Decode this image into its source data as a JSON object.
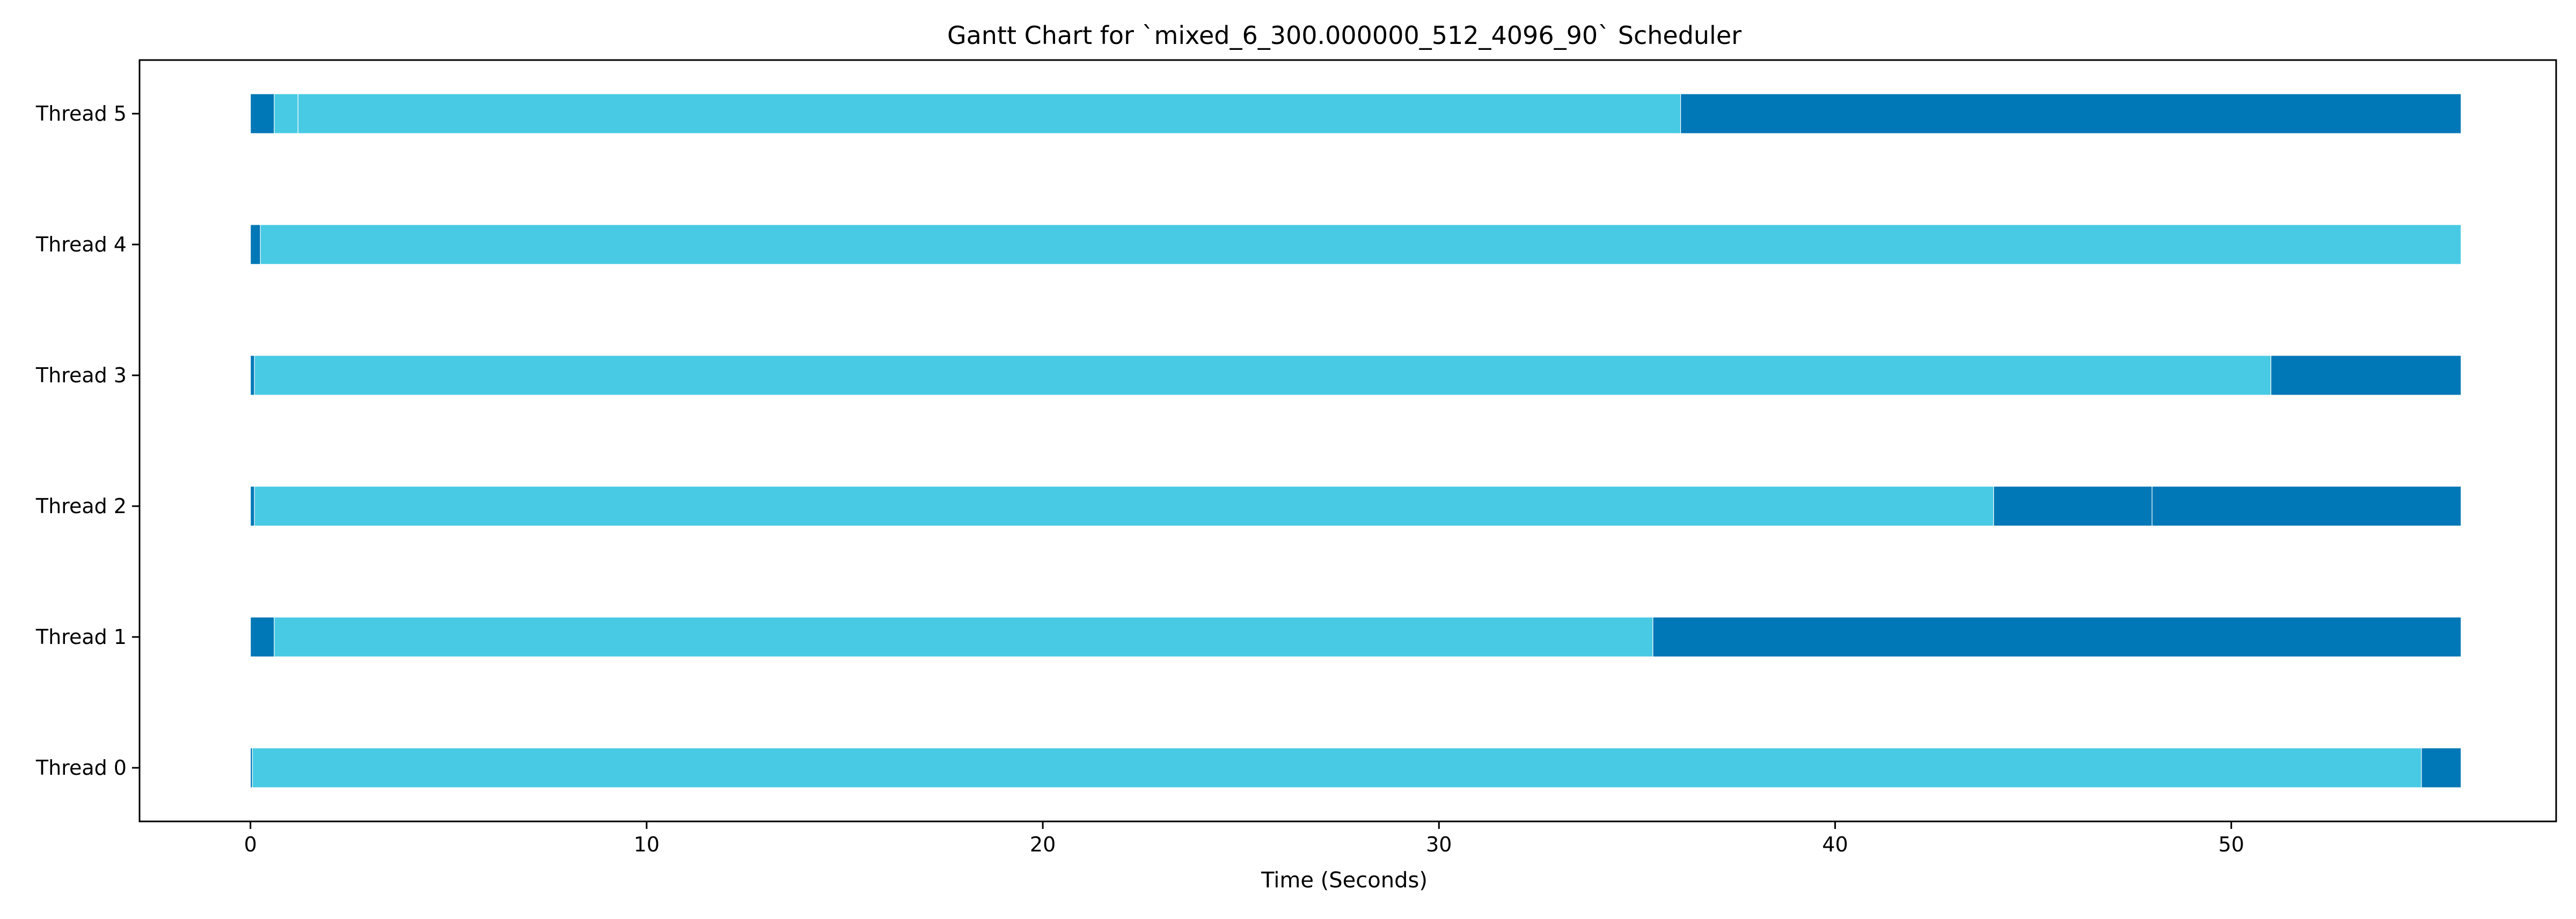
{
  "chart_data": {
    "type": "gantt",
    "title": "Gantt Chart for `mixed_6_300.000000_512_4096_90` Scheduler",
    "xlabel": "Time (Seconds)",
    "ylabel": "",
    "xlim": [
      -2.8,
      58.2
    ],
    "xticks": [
      0,
      10,
      20,
      30,
      40,
      50
    ],
    "grid": false,
    "legend": "none",
    "colors": {
      "dark": "#0077b6",
      "light": "#48cae4",
      "separator": "#ffffff"
    },
    "threads": [
      {
        "name": "Thread 0",
        "segments": [
          {
            "start": 0.0,
            "end": 0.05,
            "state": "dark"
          },
          {
            "start": 0.05,
            "end": 54.8,
            "state": "light"
          },
          {
            "start": 54.8,
            "end": 55.8,
            "state": "dark"
          }
        ]
      },
      {
        "name": "Thread 1",
        "segments": [
          {
            "start": 0.0,
            "end": 0.6,
            "state": "dark"
          },
          {
            "start": 0.6,
            "end": 35.4,
            "state": "light"
          },
          {
            "start": 35.4,
            "end": 55.8,
            "state": "dark"
          }
        ]
      },
      {
        "name": "Thread 2",
        "segments": [
          {
            "start": 0.0,
            "end": 0.1,
            "state": "dark"
          },
          {
            "start": 0.1,
            "end": 44.0,
            "state": "light"
          },
          {
            "start": 44.0,
            "end": 48.0,
            "state": "dark"
          },
          {
            "start": 48.0,
            "end": 55.8,
            "state": "dark"
          }
        ]
      },
      {
        "name": "Thread 3",
        "segments": [
          {
            "start": 0.0,
            "end": 0.1,
            "state": "dark"
          },
          {
            "start": 0.1,
            "end": 51.0,
            "state": "light"
          },
          {
            "start": 51.0,
            "end": 55.8,
            "state": "dark"
          }
        ]
      },
      {
        "name": "Thread 4",
        "segments": [
          {
            "start": 0.0,
            "end": 0.25,
            "state": "dark"
          },
          {
            "start": 0.25,
            "end": 55.8,
            "state": "light"
          }
        ]
      },
      {
        "name": "Thread 5",
        "segments": [
          {
            "start": 0.0,
            "end": 0.6,
            "state": "dark"
          },
          {
            "start": 0.6,
            "end": 1.2,
            "state": "light"
          },
          {
            "start": 1.2,
            "end": 36.1,
            "state": "light"
          },
          {
            "start": 36.1,
            "end": 55.8,
            "state": "dark"
          }
        ]
      }
    ]
  }
}
